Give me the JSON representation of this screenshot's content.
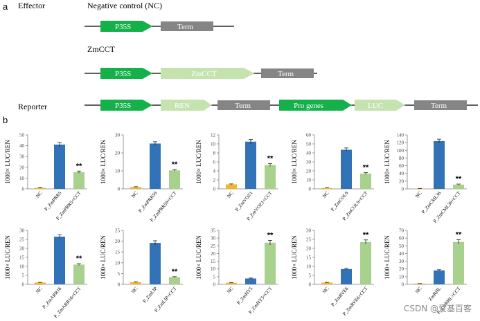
{
  "panel_a": {
    "letter": "a",
    "effector_label": "Effector",
    "nc_title": "Negative control (NC)",
    "zmcct_title": "ZmCCT",
    "reporter_label": "Reporter",
    "constructs": {
      "nc": [
        "P35S",
        "Term"
      ],
      "zmcct": [
        "P35S",
        "ZmCCT",
        "Term"
      ],
      "reporter": [
        "P35S",
        "REN",
        "Term",
        "Pro genes",
        "LUC",
        "Term"
      ]
    }
  },
  "panel_b": {
    "letter": "b"
  },
  "colors": {
    "promoter_green": "#14b14a",
    "cds_light_green": "#c4e3ae",
    "term_gray": "#858585",
    "bar_nc": "#f2b62a",
    "bar_gene": "#3272b6",
    "bar_cct": "#a9d18e"
  },
  "chart_data": [
    {
      "type": "bar",
      "ylabel": "1000× LUC/REN",
      "ylim": [
        0,
        50
      ],
      "yticks": [
        0,
        10,
        20,
        30,
        40,
        50
      ],
      "categories": [
        "NC",
        "P_ZmPRR5",
        "P_ZmPRR5+CCT"
      ],
      "values": [
        1,
        41,
        15.5
      ],
      "errors": [
        0.3,
        2,
        1
      ],
      "annotation": "**"
    },
    {
      "type": "bar",
      "ylabel": "1000× LUC/REN",
      "ylim": [
        0,
        30
      ],
      "yticks": [
        0,
        10,
        20,
        30
      ],
      "categories": [
        "NC",
        "P_ZmPRR59",
        "P_ZmPRR59+CCT"
      ],
      "values": [
        1,
        25.2,
        10.3
      ],
      "errors": [
        0.2,
        1,
        0.5
      ],
      "annotation": "**"
    },
    {
      "type": "bar",
      "ylabel": "1000× LUC/REN",
      "ylim": [
        0,
        12
      ],
      "yticks": [
        0,
        2,
        4,
        6,
        8,
        10,
        12
      ],
      "categories": [
        "NC",
        "P_ZmVOZ1",
        "P_ZmVOZ1+CCT"
      ],
      "values": [
        1,
        10.5,
        5.3
      ],
      "errors": [
        0.1,
        0.5,
        0.3
      ],
      "annotation": "**"
    },
    {
      "type": "bar",
      "ylabel": "1000× LUC/REN",
      "ylim": [
        0,
        60
      ],
      "yticks": [
        0,
        10,
        20,
        30,
        40,
        50,
        60
      ],
      "categories": [
        "NC",
        "P_ZmCOL9",
        "P_ZmCOL9+CCT"
      ],
      "values": [
        1,
        43.5,
        17
      ],
      "errors": [
        0.2,
        2,
        1
      ],
      "annotation": "**"
    },
    {
      "type": "bar",
      "ylabel": "1000× LUC/REN",
      "ylim": [
        0,
        140
      ],
      "yticks": [
        0,
        20,
        40,
        60,
        80,
        100,
        120,
        140
      ],
      "categories": [
        "NC",
        "P_ZmCML36",
        "P_ZmCML36+CCT"
      ],
      "values": [
        1,
        124,
        11
      ],
      "errors": [
        0.3,
        5,
        1.5
      ],
      "annotation": "**"
    },
    {
      "type": "bar",
      "ylabel": "1000× LUC/REN",
      "ylim": [
        0,
        30
      ],
      "yticks": [
        0,
        5,
        10,
        15,
        20,
        25,
        30
      ],
      "categories": [
        "NC",
        "P_ZmARR16",
        "P_ZmARR16+CCT"
      ],
      "values": [
        1,
        26.5,
        11
      ],
      "errors": [
        0.1,
        1,
        0.5
      ],
      "annotation": "**"
    },
    {
      "type": "bar",
      "ylabel": "1000× LUC/REN",
      "ylim": [
        0,
        25
      ],
      "yticks": [
        0,
        5,
        10,
        15,
        20,
        25
      ],
      "categories": [
        "NC",
        "P_ZmLIP",
        "P_ZmLIP+CCT"
      ],
      "values": [
        1,
        19.2,
        3.3
      ],
      "errors": [
        0.2,
        1,
        0.3
      ],
      "annotation": "**"
    },
    {
      "type": "bar",
      "ylabel": "1000× LUC/REN",
      "ylim": [
        0,
        35
      ],
      "yticks": [
        0,
        5,
        10,
        15,
        20,
        25,
        30,
        35
      ],
      "categories": [
        "NC",
        "P_ZmHY5",
        "P_ZmHY5+CCT"
      ],
      "values": [
        1,
        3.8,
        27
      ],
      "errors": [
        0.1,
        0.3,
        1.5
      ],
      "annotation": "**"
    },
    {
      "type": "bar",
      "ylabel": "1000× LUC/REN",
      "ylim": [
        0,
        30
      ],
      "yticks": [
        0,
        5,
        10,
        15,
        20,
        25,
        30
      ],
      "categories": [
        "NC",
        "P_ZmRVE6",
        "P_ZmRVE6+CCT"
      ],
      "values": [
        1,
        8.5,
        23.5
      ],
      "errors": [
        0.1,
        0.4,
        1.2
      ],
      "annotation": "**"
    },
    {
      "type": "bar",
      "ylabel": "1000× LUC/REN",
      "ylim": [
        0,
        70
      ],
      "yticks": [
        0,
        10,
        20,
        30,
        40,
        50,
        60,
        70
      ],
      "categories": [
        "NC",
        "ZmRHL",
        "P_ZmRHL+CCT"
      ],
      "values": [
        1,
        18,
        55
      ],
      "errors": [
        0.1,
        1,
        3
      ],
      "annotation": "**"
    }
  ],
  "watermark": "CSDN @爱基百客"
}
